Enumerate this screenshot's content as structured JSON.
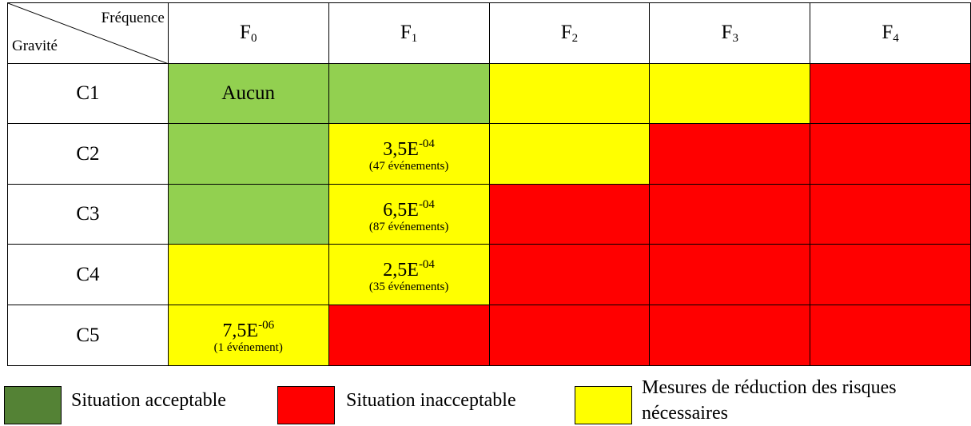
{
  "header": {
    "corner_top": "Fréquence",
    "corner_bottom": "Gravité",
    "columns": [
      {
        "letter": "F",
        "index": "0"
      },
      {
        "letter": "F",
        "index": "1"
      },
      {
        "letter": "F",
        "index": "2"
      },
      {
        "letter": "F",
        "index": "3"
      },
      {
        "letter": "F",
        "index": "4"
      }
    ]
  },
  "rows": [
    {
      "label": "C1"
    },
    {
      "label": "C2"
    },
    {
      "label": "C3"
    },
    {
      "label": "C4"
    },
    {
      "label": "C5"
    }
  ],
  "cells": {
    "c1_f0": "Aucun",
    "c2_f1": {
      "mantissa": "3,5E",
      "exponent": "-04",
      "events": "(47 événements)"
    },
    "c3_f1": {
      "mantissa": "6,5E",
      "exponent": "-04",
      "events": "(87 événements)"
    },
    "c4_f1": {
      "mantissa": "2,5E",
      "exponent": "-04",
      "events": "(35 événements)"
    },
    "c5_f0": {
      "mantissa": "7,5E",
      "exponent": "-06",
      "events": "(1 événement)"
    }
  },
  "colors": {
    "acceptable": "#92d050",
    "acceptable_legend": "#548235",
    "inacceptable": "#ff0000",
    "mesures": "#ffff00"
  },
  "legend": {
    "acceptable": "Situation acceptable",
    "inacceptable": "Situation inacceptable",
    "mesures_line1": "Mesures de réduction des risques",
    "mesures_line2": "nécessaires"
  }
}
